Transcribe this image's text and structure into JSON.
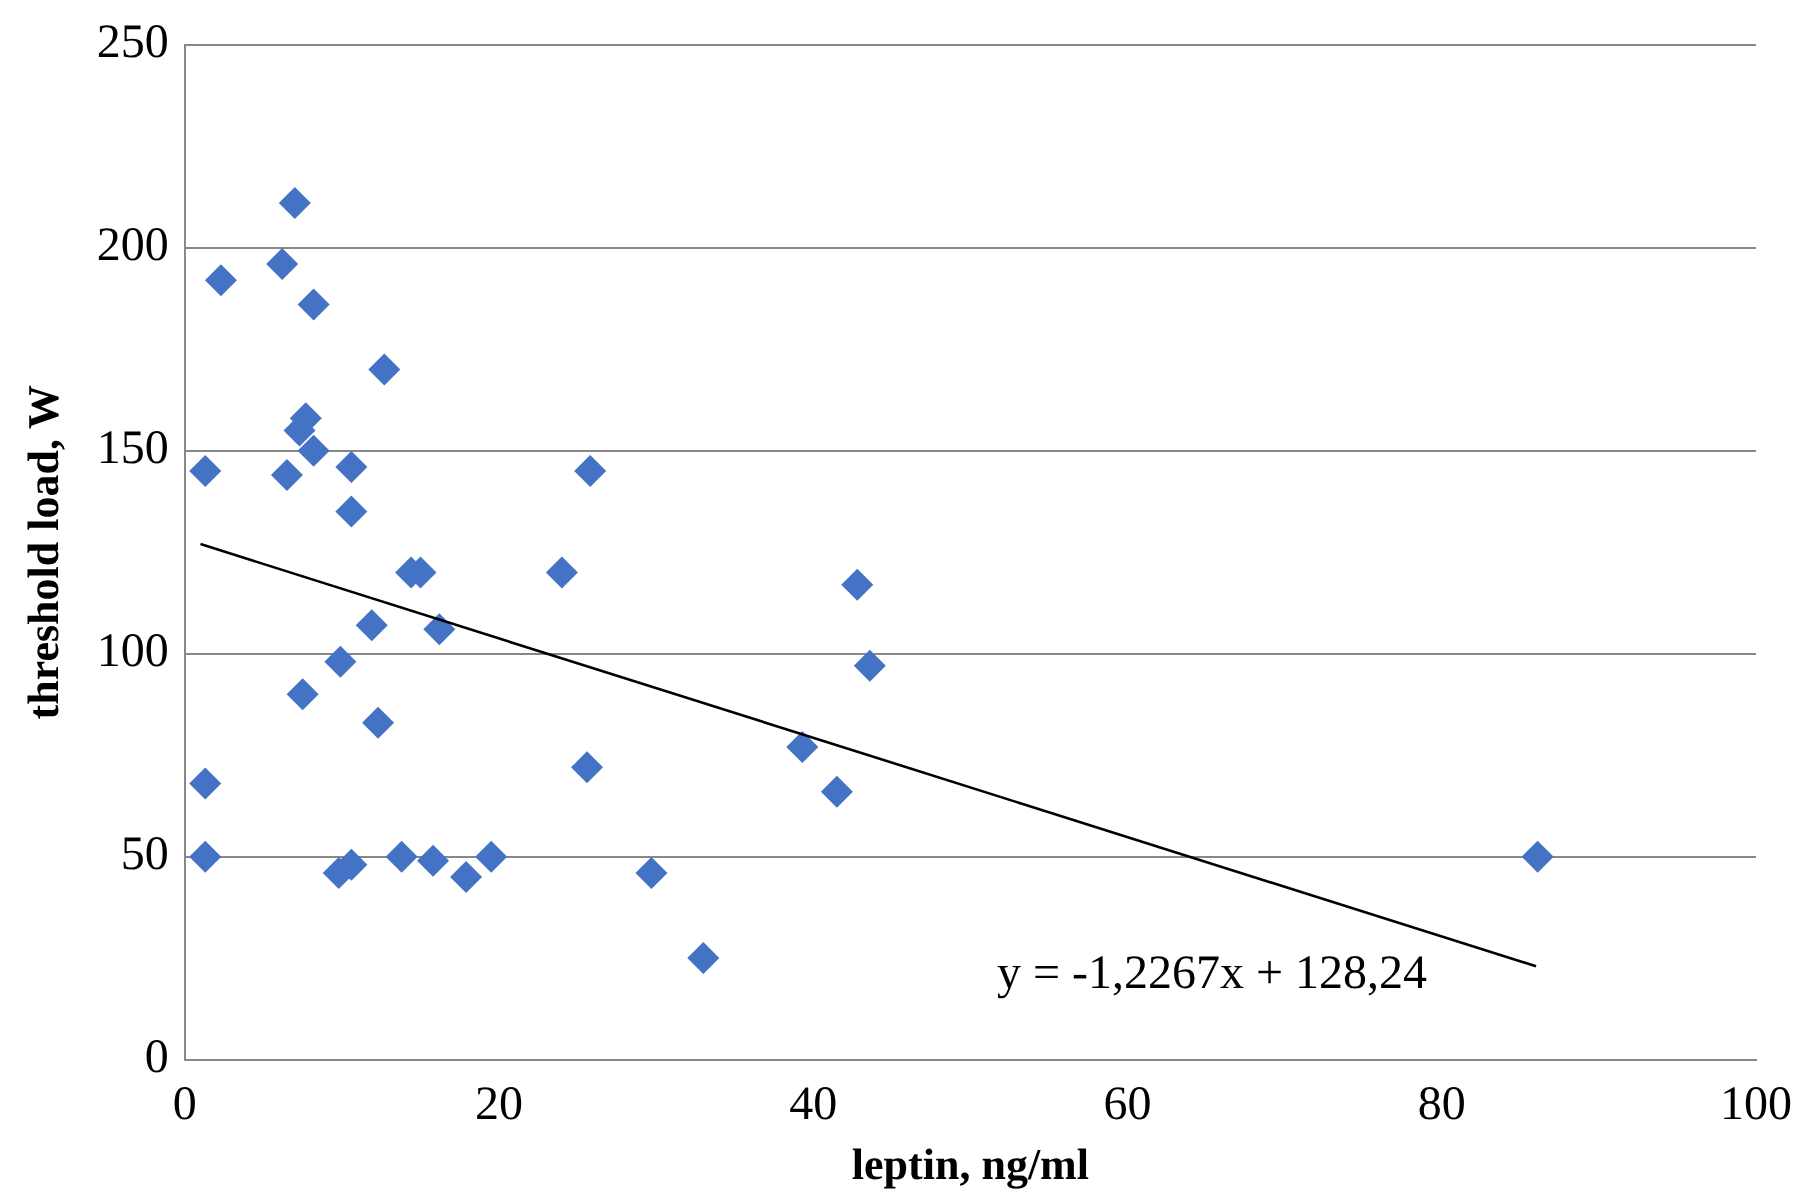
{
  "chart_data": {
    "type": "scatter",
    "xlabel": "leptin, ng/ml",
    "ylabel": "threshold load, W",
    "xlim": [
      0,
      100
    ],
    "xticks": [
      0,
      20,
      40,
      60,
      80,
      100
    ],
    "ylim": [
      0,
      250
    ],
    "yticks": [
      0,
      50,
      100,
      150,
      200,
      250
    ],
    "grid": "y",
    "marker": "diamond",
    "series": [
      {
        "color": "#4472c4",
        "x": [
          2.3,
          1.3,
          1.3,
          1.3,
          7.0,
          6.2,
          8.2,
          12.7,
          7.7,
          7.3,
          6.5,
          8.2,
          10.6,
          10.6,
          14.4,
          15,
          11.9,
          16.2,
          9.9,
          7.5,
          12.3,
          9.8,
          10.6,
          13.8,
          15.8,
          17.9,
          19.5,
          24,
          25.8,
          25.6,
          29.7,
          33,
          39.3,
          41.5,
          42.8,
          43.6,
          86.1
        ],
        "values": [
          192,
          145,
          68,
          50,
          211,
          196,
          186,
          170,
          158,
          155,
          144,
          150,
          146,
          135,
          120,
          120,
          107,
          106,
          98,
          90,
          83,
          46,
          48,
          50,
          49,
          45,
          50,
          120,
          145,
          72,
          46,
          25,
          77,
          66,
          117,
          97,
          50
        ]
      },
      {
        "type": "line",
        "color": "#000000",
        "marker": "none",
        "x": [
          1,
          86
        ],
        "values": [
          127,
          23
        ]
      }
    ],
    "annotations": [
      "y = -1,2267x + 128,24"
    ]
  }
}
